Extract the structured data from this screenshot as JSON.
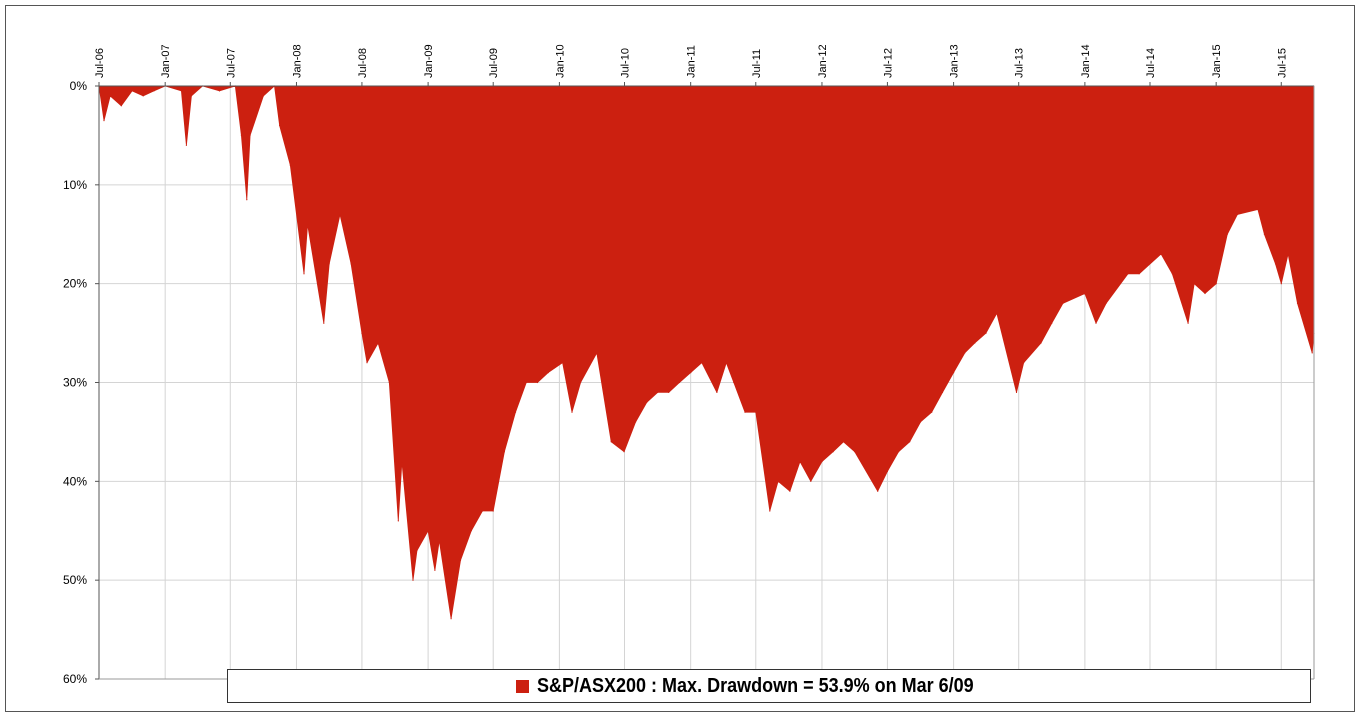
{
  "chart_data": {
    "type": "area",
    "title": "",
    "xlabel": "",
    "ylabel": "",
    "x_tick_labels": [
      "Jul-06",
      "Jan-07",
      "Jul-07",
      "Jan-08",
      "Jul-08",
      "Jan-09",
      "Jul-09",
      "Jan-10",
      "Jul-10",
      "Jan-11",
      "Jul-11",
      "Jan-12",
      "Jul-12",
      "Jan-13",
      "Jul-13",
      "Jan-14",
      "Jul-14",
      "Jan-15",
      "Jul-15"
    ],
    "y_tick_labels": [
      "0%",
      "10%",
      "20%",
      "30%",
      "40%",
      "50%",
      "60%"
    ],
    "xlim": [
      "2006-07-01",
      "2015-09-30"
    ],
    "ylim": [
      0,
      60
    ],
    "y_inverted": true,
    "grid": true,
    "legend_position": "bottom",
    "series": [
      {
        "name": "S&P/ASX200 : Max. Drawdown = 53.9% on Mar 6/09",
        "color": "#cc2010",
        "points": [
          [
            "2006-07-01",
            0
          ],
          [
            "2006-07-15",
            3.5
          ],
          [
            "2006-08-01",
            1
          ],
          [
            "2006-09-01",
            2
          ],
          [
            "2006-10-01",
            0.5
          ],
          [
            "2006-11-01",
            1
          ],
          [
            "2006-12-01",
            0.5
          ],
          [
            "2007-01-01",
            0
          ],
          [
            "2007-02-15",
            0.5
          ],
          [
            "2007-03-01",
            6
          ],
          [
            "2007-03-15",
            1
          ],
          [
            "2007-04-15",
            0
          ],
          [
            "2007-06-01",
            0.5
          ],
          [
            "2007-07-15",
            0
          ],
          [
            "2007-08-01",
            5
          ],
          [
            "2007-08-16",
            11.5
          ],
          [
            "2007-08-25",
            5
          ],
          [
            "2007-10-01",
            1
          ],
          [
            "2007-11-01",
            0
          ],
          [
            "2007-11-15",
            4
          ],
          [
            "2007-12-15",
            8
          ],
          [
            "2008-01-22",
            19
          ],
          [
            "2008-02-01",
            14
          ],
          [
            "2008-03-17",
            24
          ],
          [
            "2008-04-01",
            18
          ],
          [
            "2008-05-01",
            13
          ],
          [
            "2008-06-01",
            18
          ],
          [
            "2008-07-01",
            25
          ],
          [
            "2008-07-15",
            28
          ],
          [
            "2008-08-15",
            26
          ],
          [
            "2008-09-15",
            30
          ],
          [
            "2008-10-10",
            44
          ],
          [
            "2008-10-20",
            38
          ],
          [
            "2008-11-20",
            50
          ],
          [
            "2008-12-01",
            47
          ],
          [
            "2009-01-01",
            45
          ],
          [
            "2009-01-20",
            49
          ],
          [
            "2009-02-01",
            46
          ],
          [
            "2009-03-06",
            53.9
          ],
          [
            "2009-04-01",
            48
          ],
          [
            "2009-05-01",
            45
          ],
          [
            "2009-06-01",
            43
          ],
          [
            "2009-07-01",
            43
          ],
          [
            "2009-08-01",
            37
          ],
          [
            "2009-09-01",
            33
          ],
          [
            "2009-10-01",
            30
          ],
          [
            "2009-11-01",
            30
          ],
          [
            "2009-12-01",
            29
          ],
          [
            "2010-01-10",
            28
          ],
          [
            "2010-02-05",
            33
          ],
          [
            "2010-03-01",
            30
          ],
          [
            "2010-04-15",
            27
          ],
          [
            "2010-05-25",
            36
          ],
          [
            "2010-06-30",
            37
          ],
          [
            "2010-08-01",
            34
          ],
          [
            "2010-09-01",
            32
          ],
          [
            "2010-10-01",
            31
          ],
          [
            "2010-11-01",
            31
          ],
          [
            "2010-12-01",
            30
          ],
          [
            "2011-01-01",
            29
          ],
          [
            "2011-02-01",
            28
          ],
          [
            "2011-03-15",
            31
          ],
          [
            "2011-04-10",
            28
          ],
          [
            "2011-05-01",
            30
          ],
          [
            "2011-06-01",
            33
          ],
          [
            "2011-07-01",
            33
          ],
          [
            "2011-08-09",
            43
          ],
          [
            "2011-09-01",
            40
          ],
          [
            "2011-10-04",
            41
          ],
          [
            "2011-11-01",
            38
          ],
          [
            "2011-12-01",
            40
          ],
          [
            "2012-01-01",
            38
          ],
          [
            "2012-02-01",
            37
          ],
          [
            "2012-03-01",
            36
          ],
          [
            "2012-04-01",
            37
          ],
          [
            "2012-06-04",
            41
          ],
          [
            "2012-07-01",
            39
          ],
          [
            "2012-08-01",
            37
          ],
          [
            "2012-09-01",
            36
          ],
          [
            "2012-10-01",
            34
          ],
          [
            "2012-11-01",
            33
          ],
          [
            "2012-12-01",
            31
          ],
          [
            "2013-01-01",
            29
          ],
          [
            "2013-02-01",
            27
          ],
          [
            "2013-03-01",
            26
          ],
          [
            "2013-04-01",
            25
          ],
          [
            "2013-05-01",
            23
          ],
          [
            "2013-06-25",
            31
          ],
          [
            "2013-07-15",
            28
          ],
          [
            "2013-09-01",
            26
          ],
          [
            "2013-10-01",
            24
          ],
          [
            "2013-11-01",
            22
          ],
          [
            "2014-01-01",
            21
          ],
          [
            "2014-02-01",
            24
          ],
          [
            "2014-03-01",
            22
          ],
          [
            "2014-05-01",
            19
          ],
          [
            "2014-06-01",
            19
          ],
          [
            "2014-08-01",
            17
          ],
          [
            "2014-09-01",
            19
          ],
          [
            "2014-10-15",
            24
          ],
          [
            "2014-11-01",
            20
          ],
          [
            "2014-12-01",
            21
          ],
          [
            "2015-01-01",
            20
          ],
          [
            "2015-02-01",
            15
          ],
          [
            "2015-03-01",
            13
          ],
          [
            "2015-04-27",
            12.5
          ],
          [
            "2015-05-15",
            15
          ],
          [
            "2015-06-15",
            18
          ],
          [
            "2015-07-01",
            20
          ],
          [
            "2015-07-20",
            17
          ],
          [
            "2015-08-15",
            22
          ],
          [
            "2015-09-25",
            27
          ],
          [
            "2015-09-30",
            25
          ]
        ]
      }
    ]
  },
  "legend": {
    "text": "S&P/ASX200 : Max. Drawdown = 53.9% on Mar 6/09",
    "color": "#cc2010"
  }
}
